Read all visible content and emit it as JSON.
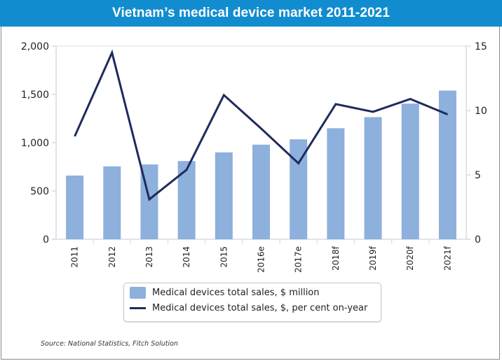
{
  "title": "Vietnam’s medical device market 2011-2021",
  "source": "Source: National Statistics, Fitch Solution",
  "colors": {
    "title_bar": "#118dcf",
    "bar": "#8db0dd",
    "line": "#1f2a5e",
    "axis": "#d5dbe5"
  },
  "chart_data": {
    "type": "bar",
    "title": "Vietnam’s medical device market 2011-2021",
    "xlabel": "",
    "ylabel": "",
    "categories": [
      "2011",
      "2012",
      "2013",
      "2014",
      "2015",
      "2016e",
      "2017e",
      "2018f",
      "2019f",
      "2020f",
      "2021f"
    ],
    "series": [
      {
        "name": "Medical devices total sales, $ million",
        "type": "bar",
        "axis": "left",
        "values": [
          660,
          755,
          775,
          810,
          900,
          980,
          1035,
          1150,
          1265,
          1405,
          1540
        ]
      },
      {
        "name": "Medical devices total sales, $, per cent on-year",
        "type": "line",
        "axis": "right",
        "values": [
          8.0,
          14.5,
          3.1,
          5.4,
          11.2,
          8.6,
          5.9,
          10.5,
          9.9,
          10.9,
          9.7
        ]
      }
    ],
    "y_left": {
      "range": [
        0,
        2000
      ],
      "ticks": [
        0,
        500,
        1000,
        1500,
        2000
      ],
      "tick_labels": [
        "0",
        "500",
        "1,000",
        "1,500",
        "2,000"
      ]
    },
    "y_right": {
      "range": [
        0,
        15
      ],
      "ticks": [
        0,
        5,
        10,
        15
      ],
      "tick_labels": [
        "0",
        "5",
        "10",
        "15"
      ]
    },
    "grid": false,
    "legend": "bottom-center"
  }
}
